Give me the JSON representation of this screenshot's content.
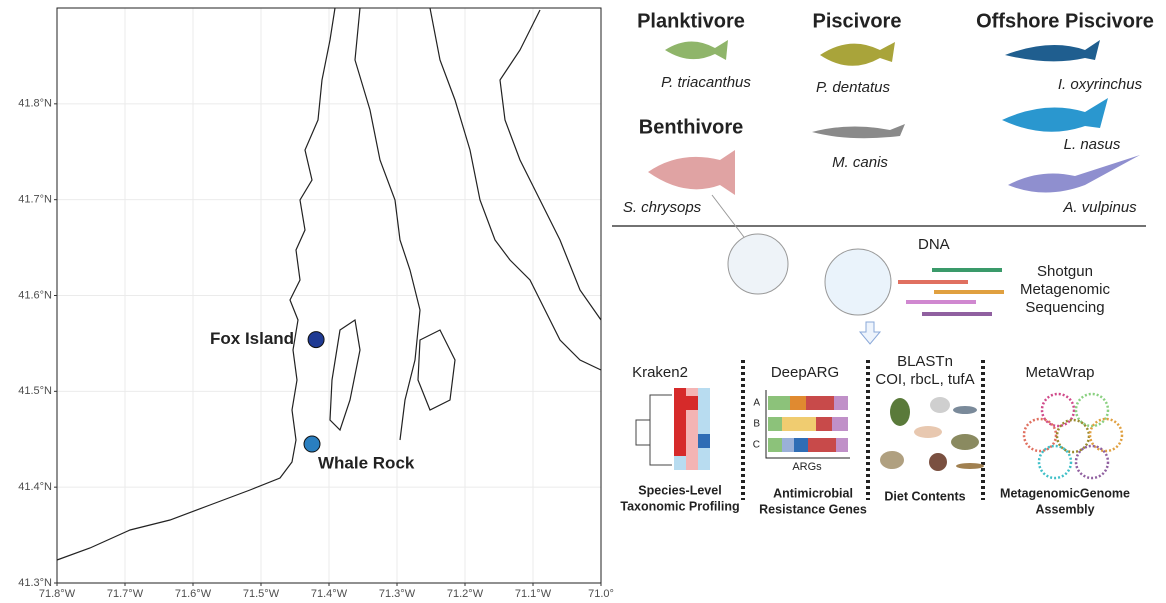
{
  "map": {
    "xlim": [
      -71.8,
      -71.0
    ],
    "ylim": [
      41.3,
      41.9
    ],
    "xticks": [
      {
        "value": -71.8,
        "label": "71.8°W"
      },
      {
        "value": -71.7,
        "label": "71.7°W"
      },
      {
        "value": -71.6,
        "label": "71.6°W"
      },
      {
        "value": -71.5,
        "label": "71.5°W"
      },
      {
        "value": -71.4,
        "label": "71.4°W"
      },
      {
        "value": -71.3,
        "label": "71.3°W"
      },
      {
        "value": -71.2,
        "label": "71.2°W"
      },
      {
        "value": -71.1,
        "label": "71.1°W"
      },
      {
        "value": -71.0,
        "label": "71.0°"
      }
    ],
    "yticks": [
      {
        "value": 41.3,
        "label": "41.3°N"
      },
      {
        "value": 41.4,
        "label": "41.4°N"
      },
      {
        "value": 41.5,
        "label": "41.5°N"
      },
      {
        "value": 41.6,
        "label": "41.6°N"
      },
      {
        "value": 41.7,
        "label": "41.7°N"
      },
      {
        "value": 41.8,
        "label": "41.8°N"
      }
    ],
    "sites": [
      {
        "name": "Fox Island",
        "lon": -71.419,
        "lat": 41.554,
        "color": "#1f3a93"
      },
      {
        "name": "Whale Rock",
        "lon": -71.425,
        "lat": 41.445,
        "color": "#2a7fc0"
      }
    ]
  },
  "feeding_groups": [
    {
      "name": "Planktivore",
      "species": [
        "P. triacanthus"
      ]
    },
    {
      "name": "Piscivore",
      "species": [
        "P. dentatus",
        "M. canis"
      ]
    },
    {
      "name": "Offshore Piscivore",
      "species": [
        "I. oxyrinchus",
        "L. nasus",
        "A. vulpinus"
      ]
    },
    {
      "name": "Benthivore",
      "species": [
        "S. chrysops"
      ]
    }
  ],
  "sequencing": {
    "input": "DNA",
    "method": [
      "Shotgun",
      "Metagenomic",
      "Sequencing"
    ]
  },
  "analyses": [
    {
      "tool": "Kraken2",
      "output": [
        "Species-Level",
        "Taxonomic Profiling"
      ]
    },
    {
      "tool": "DeepARG",
      "samples": [
        "A",
        "B",
        "C"
      ],
      "axis": "ARGs",
      "output": [
        "Antimicrobial",
        "Resistance Genes"
      ]
    },
    {
      "tool": "BLASTn",
      "markers": "COI, rbcL, tufA",
      "output": [
        "Diet Contents"
      ]
    },
    {
      "tool": "MetaWrap",
      "output": [
        "MetagenomicGenome",
        "Assembly"
      ]
    }
  ]
}
